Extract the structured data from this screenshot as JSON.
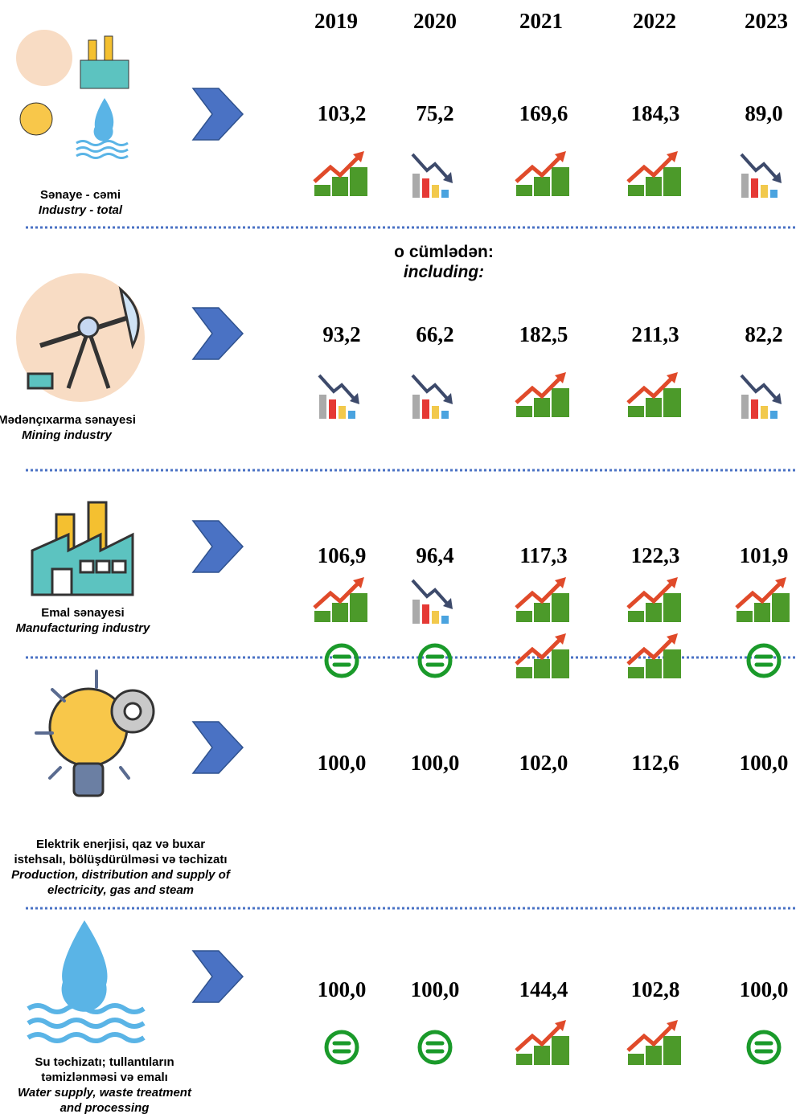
{
  "years": [
    "2019",
    "2020",
    "2021",
    "2022",
    "2023"
  ],
  "including": [
    "o cümlədən:",
    "including:"
  ],
  "sections": [
    {
      "title_az": [
        "Sənaye - cəmi"
      ],
      "title_en": [
        "Industry - total"
      ],
      "values": [
        "103,2",
        "75,2",
        "169,6",
        "184,3",
        "89,0"
      ]
    },
    {
      "title_az": [
        "Mədənçıxarma sənayesi"
      ],
      "title_en": [
        "Mining industry"
      ],
      "values": [
        "93,2",
        "66,2",
        "182,5",
        "211,3",
        "82,2"
      ]
    },
    {
      "title_az": [
        "Emal sənayesi"
      ],
      "title_en": [
        "Manufacturing industry"
      ],
      "values": [
        "106,9",
        "96,4",
        "117,3",
        "122,3",
        "101,9"
      ]
    },
    {
      "title_az": [
        "Elektrik enerjisi, qaz və buxar",
        "istehsalı, bölüşdürülməsi və təchizatı"
      ],
      "title_en": [
        "Production, distribution and supply of",
        "electricity, gas and steam"
      ],
      "values": [
        "100,0",
        "100,0",
        "102,0",
        "112,6",
        "100,0"
      ]
    },
    {
      "title_az": [
        "Su təchizatı;  tullantıların",
        "təmizlənməsi və emalı"
      ],
      "title_en": [
        "Water supply, waste treatment",
        "and processing"
      ],
      "values": [
        "100,0",
        "100,0",
        "144,4",
        "102,8",
        "100,0"
      ]
    }
  ]
}
